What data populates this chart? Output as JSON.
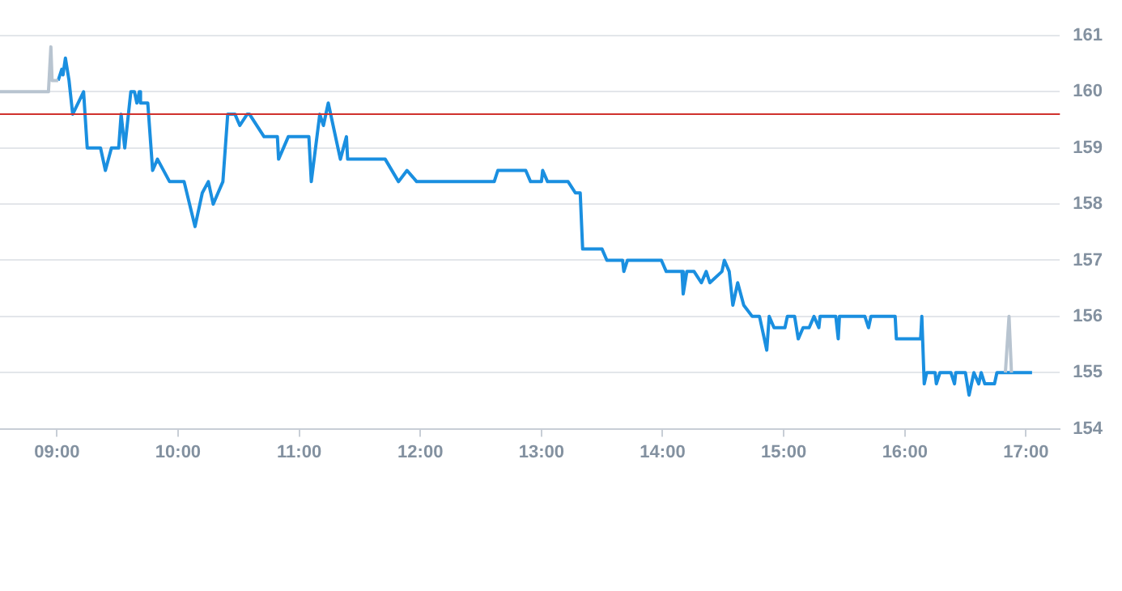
{
  "chart_data": {
    "type": "line",
    "xlim": [
      8.53,
      17.28
    ],
    "ylim": [
      154,
      161
    ],
    "xticks": [
      {
        "value": 9,
        "label": "09:00"
      },
      {
        "value": 10,
        "label": "10:00"
      },
      {
        "value": 11,
        "label": "11:00"
      },
      {
        "value": 12,
        "label": "12:00"
      },
      {
        "value": 13,
        "label": "13:00"
      },
      {
        "value": 14,
        "label": "14:00"
      },
      {
        "value": 15,
        "label": "15:00"
      },
      {
        "value": 16,
        "label": "16:00"
      },
      {
        "value": 17,
        "label": "17:00"
      }
    ],
    "yticks": [
      154,
      155,
      156,
      157,
      158,
      159,
      160,
      161
    ],
    "grid": "y",
    "legend": false,
    "marker": "none",
    "line_style": "solid",
    "ref_lines": [
      {
        "axis": "y",
        "value": 159.6,
        "color": "#d0312d"
      }
    ],
    "series": [
      {
        "color": "#b8c4d0",
        "x": [
          8.53,
          8.93,
          8.95,
          8.96,
          9.01,
          12,
          16.83,
          16.86,
          16.88
        ],
        "values": [
          160,
          160,
          160.8,
          160.2,
          160.2,
          null,
          155,
          156,
          155
        ]
      },
      {
        "color": "#1a8fe0",
        "x": [
          9.01,
          9.04,
          9.05,
          9.07,
          9.1,
          9.13,
          9.22,
          9.25,
          9.36,
          9.4,
          9.45,
          9.51,
          9.53,
          9.56,
          9.61,
          9.64,
          9.66,
          9.68,
          9.69,
          9.75,
          9.79,
          9.83,
          9.93,
          10.05,
          10.14,
          10.2,
          10.25,
          10.29,
          10.33,
          10.37,
          10.41,
          10.47,
          10.51,
          10.57,
          10.59,
          10.71,
          10.82,
          10.83,
          10.91,
          11.08,
          11.1,
          11.17,
          11.2,
          11.24,
          11.34,
          11.39,
          11.4,
          11.71,
          11.82,
          11.89,
          11.97,
          12.61,
          12.64,
          12.87,
          12.91,
          13.0,
          13.01,
          13.05,
          13.22,
          13.28,
          13.32,
          13.34,
          13.5,
          13.54,
          13.67,
          13.68,
          13.71,
          13.99,
          14.03,
          14.16,
          14.17,
          14.2,
          14.26,
          14.32,
          14.36,
          14.39,
          14.49,
          14.51,
          14.55,
          14.58,
          14.62,
          14.67,
          14.74,
          14.8,
          14.84,
          14.86,
          14.88,
          14.92,
          15.01,
          15.03,
          15.09,
          15.12,
          15.16,
          15.21,
          15.25,
          15.29,
          15.3,
          15.43,
          15.45,
          15.46,
          15.67,
          15.7,
          15.72,
          15.92,
          15.93,
          16.13,
          16.14,
          16.16,
          16.18,
          16.25,
          16.26,
          16.29,
          16.38,
          16.41,
          16.42,
          16.5,
          16.53,
          16.57,
          16.61,
          16.63,
          16.66,
          16.74,
          16.76,
          16.83,
          17.05
        ],
        "values": [
          160.2,
          160.4,
          160.3,
          160.6,
          160.2,
          159.6,
          160.0,
          159.0,
          159.0,
          158.6,
          159.0,
          159.0,
          159.6,
          159.0,
          160.0,
          160.0,
          159.8,
          160.0,
          159.8,
          159.8,
          158.6,
          158.8,
          158.4,
          158.4,
          157.6,
          158.2,
          158.4,
          158.0,
          158.2,
          158.4,
          159.6,
          159.6,
          159.4,
          159.6,
          159.6,
          159.2,
          159.2,
          158.8,
          159.2,
          159.2,
          158.4,
          159.6,
          159.4,
          159.8,
          158.8,
          159.2,
          158.8,
          158.8,
          158.4,
          158.6,
          158.4,
          158.4,
          158.6,
          158.6,
          158.4,
          158.4,
          158.6,
          158.4,
          158.4,
          158.2,
          158.2,
          157.2,
          157.2,
          157.0,
          157.0,
          156.8,
          157.0,
          157.0,
          156.8,
          156.8,
          156.4,
          156.8,
          156.8,
          156.6,
          156.8,
          156.6,
          156.8,
          157.0,
          156.8,
          156.2,
          156.6,
          156.2,
          156.0,
          156.0,
          155.6,
          155.4,
          156.0,
          155.8,
          155.8,
          156.0,
          156.0,
          155.6,
          155.8,
          155.8,
          156.0,
          155.8,
          156.0,
          156.0,
          155.6,
          156.0,
          156.0,
          155.8,
          156.0,
          156.0,
          155.6,
          155.6,
          156.0,
          154.8,
          155.0,
          155.0,
          154.8,
          155.0,
          155.0,
          154.8,
          155.0,
          155.0,
          154.6,
          155.0,
          154.8,
          155.0,
          154.8,
          154.8,
          155.0,
          155.0,
          155.0
        ]
      }
    ]
  }
}
